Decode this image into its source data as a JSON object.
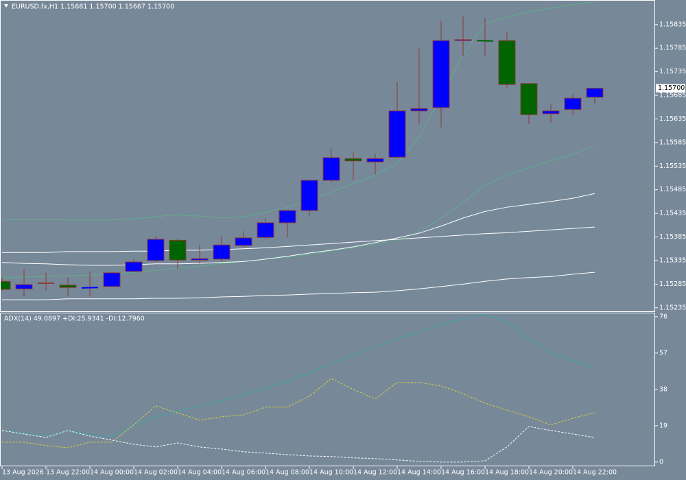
{
  "chart_data": [
    {
      "type": "candlestick",
      "title": "EURUSD.fx,H1  1.15681 1.15700 1.15667 1.15700",
      "categories": [
        "13 Aug 2026",
        null,
        "13 Aug 22:00",
        null,
        "14 Aug 00:00",
        null,
        "14 Aug 02:00",
        null,
        "14 Aug 04:00",
        null,
        "14 Aug 06:00",
        null,
        "14 Aug 08:00",
        null,
        "14 Aug 10:00",
        null,
        "14 Aug 12:00",
        null,
        "14 Aug 14:00",
        null,
        "14 Aug 16:00",
        null,
        "14 Aug 18:00",
        null,
        "14 Aug 20:00",
        null,
        "14 Aug 22:00",
        null
      ],
      "open": [
        1.15291,
        1.15275,
        1.15287,
        1.15283,
        1.15277,
        1.1528,
        1.15312,
        1.15335,
        1.15378,
        1.15336,
        1.15338,
        1.15367,
        1.15384,
        1.15415,
        1.15441,
        1.15505,
        1.15551,
        1.15544,
        1.15554,
        1.15652,
        1.15659,
        1.15801,
        1.15801,
        1.15801,
        1.1571,
        1.15646,
        1.15655,
        1.15681
      ],
      "high": [
        1.15299,
        1.15317,
        1.15309,
        1.15299,
        1.15312,
        1.15312,
        1.15338,
        1.15386,
        1.15381,
        1.15368,
        1.15387,
        1.15397,
        1.15425,
        1.15442,
        1.15506,
        1.15572,
        1.15564,
        1.1556,
        1.15714,
        1.15784,
        1.15843,
        1.15852,
        1.15849,
        1.15819,
        1.15711,
        1.15666,
        1.15688,
        1.157
      ],
      "low": [
        1.1527,
        1.15259,
        1.15272,
        1.15259,
        1.15259,
        1.1528,
        1.1531,
        1.15332,
        1.15317,
        1.15329,
        1.15332,
        1.15364,
        1.1538,
        1.15384,
        1.15428,
        1.155,
        1.15506,
        1.15517,
        1.15553,
        1.15625,
        1.15617,
        1.15768,
        1.15768,
        1.157,
        1.15624,
        1.15627,
        1.15643,
        1.15667
      ],
      "close": [
        1.15274,
        1.15284,
        1.15287,
        1.15278,
        1.15278,
        1.15309,
        1.15332,
        1.1538,
        1.15336,
        1.15339,
        1.15368,
        1.15383,
        1.15415,
        1.15441,
        1.15505,
        1.15553,
        1.15546,
        1.15551,
        1.15652,
        1.15657,
        1.15801,
        1.15803,
        1.158,
        1.15708,
        1.15644,
        1.15652,
        1.15679,
        1.157
      ],
      "bull_color": "#0000ff",
      "bear_color": "#006400",
      "wick_color": "#8b3a3a",
      "background": "#778899",
      "ylim": [
        1.15226,
        1.15887
      ],
      "yticks": [
        1.15835,
        1.15785,
        1.15735,
        1.15685,
        1.15635,
        1.15585,
        1.15535,
        1.15485,
        1.15435,
        1.15385,
        1.15335,
        1.15285,
        1.15235
      ],
      "last_price": {
        "value": 1.157,
        "label": "1.15700"
      },
      "overlays": [
        {
          "color": "#5fae8a",
          "values": [
            1.15422,
            1.15422,
            1.15422,
            1.15421,
            1.15421,
            1.15421,
            1.15423,
            1.15428,
            1.15432,
            1.15429,
            1.15425,
            1.15428,
            1.15437,
            1.15448,
            1.15463,
            1.1548,
            1.15498,
            1.15516,
            1.15541,
            1.15596,
            1.15684,
            1.15771,
            1.15836,
            1.15851,
            1.15862,
            1.1587,
            1.15877,
            1.15883
          ]
        },
        {
          "color": "#5fae8a",
          "values": [
            1.15299,
            1.153,
            1.15301,
            1.15303,
            1.15304,
            1.15306,
            1.1531,
            1.15314,
            1.15319,
            1.15323,
            1.15329,
            1.15333,
            1.15338,
            1.15342,
            1.15348,
            1.15355,
            1.15362,
            1.1537,
            1.15378,
            1.15396,
            1.15425,
            1.15458,
            1.15495,
            1.15515,
            1.15531,
            1.15546,
            1.1556,
            1.15578
          ]
        },
        {
          "color": "#ffffff",
          "values": [
            1.15352,
            1.15352,
            1.15352,
            1.15354,
            1.15354,
            1.15354,
            1.15355,
            1.15355,
            1.15357,
            1.15357,
            1.15358,
            1.1536,
            1.15362,
            1.15365,
            1.15368,
            1.15371,
            1.15374,
            1.15377,
            1.1538,
            1.15383,
            1.15386,
            1.15389,
            1.15392,
            1.15394,
            1.15397,
            1.154,
            1.15403,
            1.15406
          ]
        },
        {
          "color": "#ffffff",
          "values": [
            1.15331,
            1.15329,
            1.15328,
            1.15326,
            1.15325,
            1.15325,
            1.15326,
            1.15328,
            1.15328,
            1.15329,
            1.15331,
            1.15333,
            1.15338,
            1.15344,
            1.15351,
            1.15357,
            1.15364,
            1.15373,
            1.15383,
            1.15393,
            1.15408,
            1.15425,
            1.15439,
            1.15448,
            1.15454,
            1.1546,
            1.15467,
            1.15477
          ]
        },
        {
          "color": "#ffffff",
          "values": [
            1.15252,
            1.15252,
            1.15252,
            1.15254,
            1.15254,
            1.15254,
            1.15254,
            1.15255,
            1.15255,
            1.15256,
            1.15258,
            1.15259,
            1.15261,
            1.15262,
            1.15264,
            1.15265,
            1.15267,
            1.15268,
            1.15271,
            1.15275,
            1.1528,
            1.15285,
            1.15291,
            1.15296,
            1.15299,
            1.15301,
            1.15306,
            1.1531
          ]
        }
      ]
    },
    {
      "type": "line",
      "title": "ADX(14) 49.0897 +DI:25.9341 -DI:12.7960",
      "ylim": [
        -2.2,
        78.1
      ],
      "yticks": [
        76,
        57,
        38,
        19,
        0
      ],
      "series": [
        {
          "color": "#3aa6a6",
          "dashed": false,
          "values": [
            16.5,
            15.1,
            13.6,
            16.5,
            14.3,
            13.3,
            19.4,
            23.7,
            26.5,
            29.4,
            31.9,
            35.1,
            38.7,
            42.3,
            46.6,
            51.6,
            55.9,
            60.2,
            64.5,
            68.1,
            72.0,
            74.9,
            77.4,
            73.1,
            64.5,
            57.0,
            53.0,
            49.0897
          ]
        },
        {
          "color": "#d8d040",
          "dashed": true,
          "values": [
            10.4,
            10.4,
            8.6,
            7.5,
            10.4,
            10.4,
            19.4,
            29.4,
            25.8,
            21.9,
            23.7,
            24.7,
            28.7,
            28.7,
            34.4,
            43.7,
            38.0,
            33.0,
            41.6,
            41.6,
            39.8,
            35.8,
            30.8,
            27.2,
            23.7,
            19.4,
            22.9,
            25.9341
          ]
        },
        {
          "color": "#ffffff",
          "dashed": true,
          "values": [
            16.5,
            14.7,
            12.9,
            16.5,
            13.6,
            11.5,
            9.3,
            7.9,
            10.0,
            7.9,
            6.8,
            5.4,
            4.7,
            3.9,
            3.2,
            2.9,
            2.2,
            1.8,
            1.1,
            0.4,
            0,
            0,
            0.7,
            7.9,
            18.6,
            16.5,
            14.7,
            12.796
          ]
        }
      ]
    }
  ]
}
